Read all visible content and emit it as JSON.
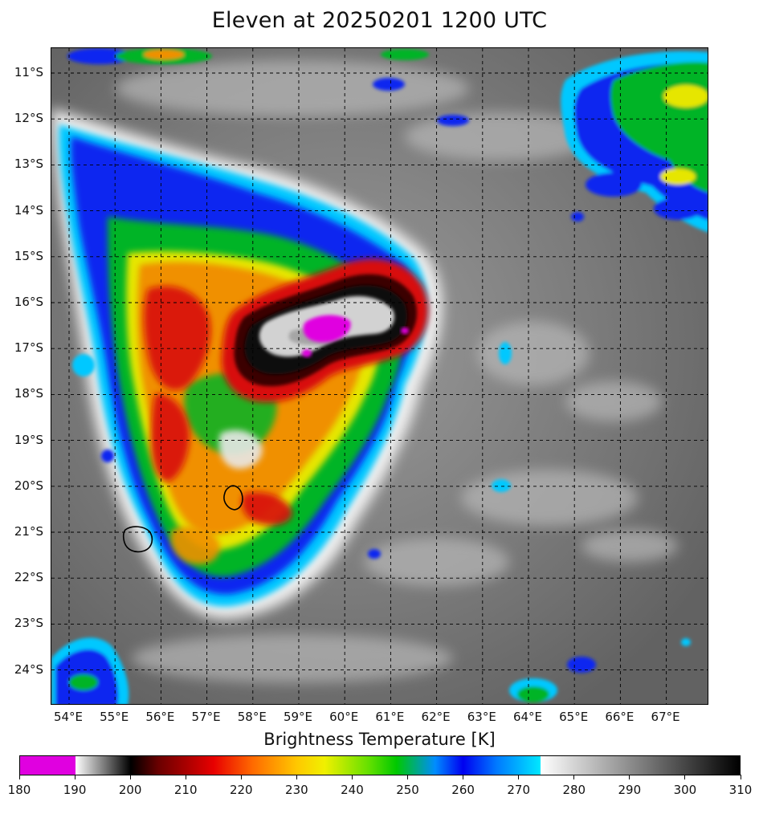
{
  "title": "Eleven at 20250201 1200 UTC",
  "map": {
    "lat_labels": [
      "11°S",
      "12°S",
      "13°S",
      "14°S",
      "15°S",
      "16°S",
      "17°S",
      "18°S",
      "19°S",
      "20°S",
      "21°S",
      "22°S",
      "23°S",
      "24°S"
    ],
    "lon_labels": [
      "54°E",
      "55°E",
      "56°E",
      "57°E",
      "58°E",
      "59°E",
      "60°E",
      "61°E",
      "62°E",
      "63°E",
      "64°E",
      "65°E",
      "66°E",
      "67°E"
    ],
    "grid": "dashed",
    "coastlines": [
      "Réunion",
      "Mauritius"
    ]
  },
  "colorbar": {
    "title": "Brightness Temperature [K]",
    "min": 180,
    "max": 310,
    "tick_labels": [
      "180",
      "190",
      "200",
      "210",
      "220",
      "230",
      "240",
      "250",
      "260",
      "270",
      "280",
      "290",
      "300",
      "310"
    ],
    "colors": {
      "magenta": "#e000e0",
      "black": "#000000",
      "red": "#e80000",
      "yellow": "#f0f000",
      "green": "#00c800",
      "blue": "#0000f0",
      "cyan": "#00e8ff",
      "white": "#ffffff"
    }
  }
}
